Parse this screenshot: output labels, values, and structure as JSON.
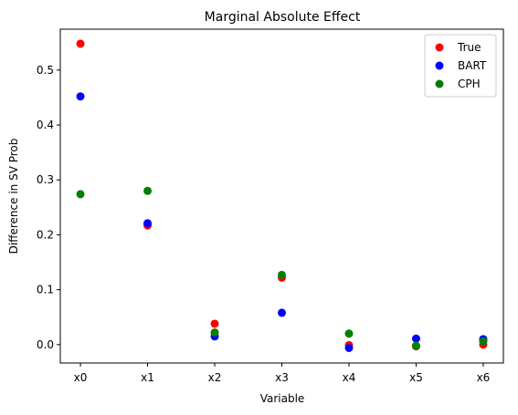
{
  "chart_data": {
    "type": "scatter",
    "title": "Marginal Absolute Effect",
    "xlabel": "Variable",
    "ylabel": "Difference in SV Prob",
    "categories": [
      "x0",
      "x1",
      "x2",
      "x3",
      "x4",
      "x5",
      "x6"
    ],
    "ylim": [
      -0.0335,
      0.5745
    ],
    "yticks": [
      0.0,
      0.1,
      0.2,
      0.3,
      0.4,
      0.5
    ],
    "ytick_labels": [
      "0.0",
      "0.1",
      "0.2",
      "0.3",
      "0.4",
      "0.5"
    ],
    "grid": false,
    "legend_position": "top-right",
    "series": [
      {
        "name": "True",
        "color": "#ff0000",
        "values": [
          0.548,
          0.217,
          0.038,
          0.122,
          -0.001,
          -0.003,
          0.0
        ]
      },
      {
        "name": "BART",
        "color": "#0000ff",
        "values": [
          0.452,
          0.221,
          0.015,
          0.058,
          -0.006,
          0.011,
          0.01
        ]
      },
      {
        "name": "CPH",
        "color": "#008000",
        "values": [
          0.274,
          0.28,
          0.022,
          0.127,
          0.02,
          -0.002,
          0.006
        ]
      }
    ]
  }
}
